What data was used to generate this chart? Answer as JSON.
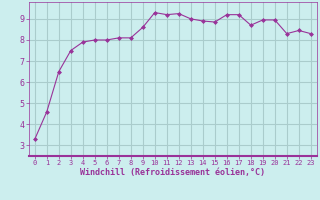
{
  "x": [
    0,
    1,
    2,
    3,
    4,
    5,
    6,
    7,
    8,
    9,
    10,
    11,
    12,
    13,
    14,
    15,
    16,
    17,
    18,
    19,
    20,
    21,
    22,
    23
  ],
  "y": [
    3.3,
    4.6,
    6.5,
    7.5,
    7.9,
    8.0,
    8.0,
    8.1,
    8.1,
    8.6,
    9.3,
    9.2,
    9.25,
    9.0,
    8.9,
    8.85,
    9.2,
    9.2,
    8.7,
    8.95,
    8.95,
    8.3,
    8.45,
    8.3
  ],
  "line_color": "#993399",
  "marker": "D",
  "marker_size": 2,
  "bg_color": "#cceeee",
  "grid_color": "#aacccc",
  "xlabel": "Windchill (Refroidissement éolien,°C)",
  "xlabel_color": "#993399",
  "tick_color": "#993399",
  "xlim": [
    -0.5,
    23.5
  ],
  "ylim": [
    2.5,
    9.8
  ],
  "yticks": [
    3,
    4,
    5,
    6,
    7,
    8,
    9
  ],
  "xticks": [
    0,
    1,
    2,
    3,
    4,
    5,
    6,
    7,
    8,
    9,
    10,
    11,
    12,
    13,
    14,
    15,
    16,
    17,
    18,
    19,
    20,
    21,
    22,
    23
  ],
  "spine_color": "#993399"
}
